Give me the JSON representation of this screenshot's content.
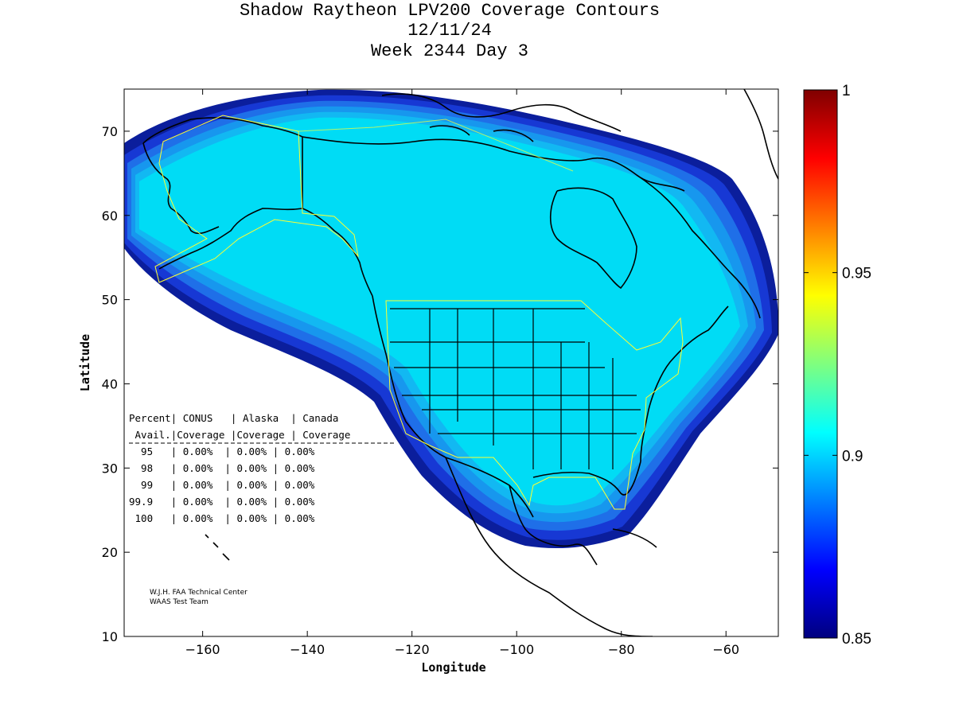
{
  "title": {
    "line1": "Shadow Raytheon LPV200 Coverage Contours",
    "line2": "12/11/24",
    "line3": "Week 2344 Day 3"
  },
  "axes": {
    "xlabel": "Longitude",
    "ylabel": "Latitude",
    "xlim": [
      -175,
      -50
    ],
    "ylim": [
      10,
      75
    ],
    "xticks": [
      -160,
      -140,
      -120,
      -100,
      -80,
      -60
    ],
    "yticks": [
      10,
      20,
      30,
      40,
      50,
      60,
      70
    ]
  },
  "colorbar": {
    "min": 0.85,
    "max": 1,
    "ticks": [
      {
        "value": 1,
        "label": "1"
      },
      {
        "value": 0.95,
        "label": "0.95"
      },
      {
        "value": 0.9,
        "label": "0.9"
      },
      {
        "value": 0.85,
        "label": "0.85"
      }
    ],
    "colors": [
      "#00007f",
      "#0000ff",
      "#007fff",
      "#00ffff",
      "#7fff7f",
      "#ffff00",
      "#ff7f00",
      "#ff0000",
      "#7f0000"
    ]
  },
  "coverage_colors": {
    "band1": "#0b1e9c",
    "band2": "#1738d4",
    "band3": "#1f6fe8",
    "band4": "#1797ee",
    "band5": "#12b8f2",
    "core": "#00dcf5",
    "service_outline": "#ffff33"
  },
  "stats_table": {
    "header1": "Percent| CONUS   | Alaska  | Canada",
    "header2": " Avail.|Coverage |Coverage | Coverage",
    "rows": [
      "  95   | 0.00%  | 0.00% | 0.00%",
      "  98   | 0.00%  | 0.00% | 0.00%",
      "  99   | 0.00%  | 0.00% | 0.00%",
      "99.9   | 0.00%  | 0.00% | 0.00%",
      " 100   | 0.00%  | 0.00% | 0.00%"
    ]
  },
  "credits": {
    "line1": "W.J.H. FAA Technical Center",
    "line2": "WAAS Test Team"
  },
  "chart_data": {
    "type": "heatmap",
    "title": "Shadow Raytheon LPV200 Coverage Contours",
    "subtitle": "12/11/24 Week 2344 Day 3",
    "xlabel": "Longitude",
    "ylabel": "Latitude",
    "xlim": [
      -175,
      -50
    ],
    "ylim": [
      10,
      75
    ],
    "colorbar_range": [
      0.85,
      1
    ],
    "grid": false
  }
}
